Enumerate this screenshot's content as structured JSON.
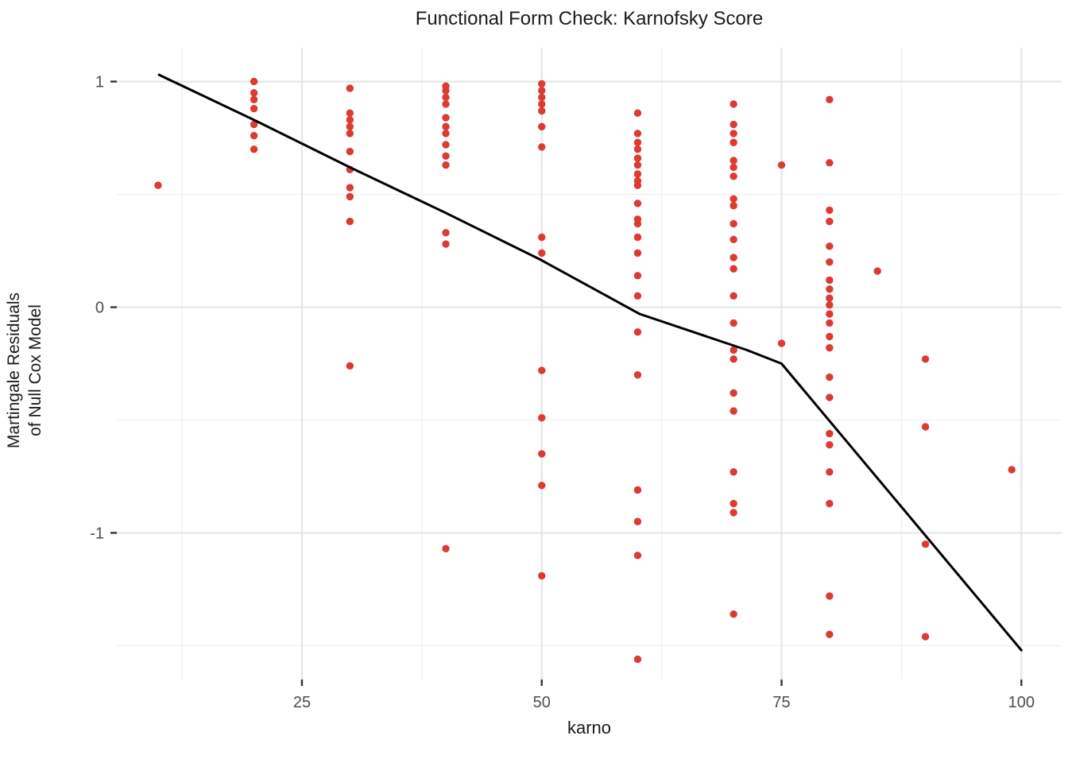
{
  "title": "Functional Form Check: Karnofsky Score",
  "chart_data": {
    "type": "scatter",
    "title": "Functional Form Check: Karnofsky Score",
    "xlabel": "karno",
    "ylabel_lines": [
      "Martingale Residuals",
      "of Null Cox Model"
    ],
    "x_ticks": [
      25,
      50,
      75,
      100
    ],
    "y_ticks": [
      1,
      0,
      -1
    ],
    "x_minor": [
      12.5,
      37.5,
      62.5,
      87.5
    ],
    "y_minor": [
      0.5,
      -0.5,
      -1.5
    ],
    "xlim": [
      5.7,
      104.2
    ],
    "ylim": [
      -1.65,
      1.15
    ],
    "grid": true,
    "legend": "none",
    "colors": {
      "point": "#DC3A32",
      "smooth_line": "#000000",
      "grid_major": "#E6E6E6",
      "grid_minor": "#EFEFEF",
      "tick_mark": "#333333",
      "tick_label": "#4D4D4D",
      "text": "#1A1A1A",
      "panel_bg": "#FFFFFF"
    },
    "groups": [
      {
        "karno": 10,
        "residuals": [
          0.54
        ]
      },
      {
        "karno": 20,
        "residuals": [
          1.0,
          0.95,
          0.92,
          0.88,
          0.81,
          0.76,
          0.7
        ]
      },
      {
        "karno": 30,
        "residuals": [
          0.97,
          0.86,
          0.83,
          0.8,
          0.77,
          0.69,
          0.61,
          0.53,
          0.49,
          0.38,
          -0.26
        ]
      },
      {
        "karno": 40,
        "residuals": [
          0.98,
          0.96,
          0.93,
          0.9,
          0.84,
          0.8,
          0.77,
          0.72,
          0.67,
          0.63,
          0.33,
          0.28,
          -1.07
        ]
      },
      {
        "karno": 50,
        "residuals": [
          0.99,
          0.96,
          0.93,
          0.9,
          0.87,
          0.8,
          0.71,
          0.31,
          0.24,
          -0.28,
          -0.49,
          -0.65,
          -0.79,
          -1.19
        ]
      },
      {
        "karno": 60,
        "residuals": [
          0.86,
          0.77,
          0.73,
          0.7,
          0.66,
          0.63,
          0.59,
          0.56,
          0.54,
          0.46,
          0.39,
          0.37,
          0.31,
          0.24,
          0.14,
          0.05,
          -0.11,
          -0.3,
          -0.81,
          -0.95,
          -1.1,
          -1.56
        ]
      },
      {
        "karno": 70,
        "residuals": [
          0.9,
          0.81,
          0.77,
          0.73,
          0.65,
          0.62,
          0.58,
          0.48,
          0.45,
          0.37,
          0.3,
          0.22,
          0.17,
          0.05,
          -0.07,
          -0.19,
          -0.23,
          -0.38,
          -0.46,
          -0.73,
          -0.87,
          -0.91,
          -1.36
        ]
      },
      {
        "karno": 75,
        "residuals": [
          0.63,
          -0.16
        ]
      },
      {
        "karno": 80,
        "residuals": [
          0.92,
          0.64,
          0.43,
          0.38,
          0.27,
          0.2,
          0.12,
          0.08,
          0.04,
          0.01,
          -0.03,
          -0.07,
          -0.13,
          -0.18,
          -0.31,
          -0.4,
          -0.56,
          -0.61,
          -0.73,
          -0.87,
          -1.28,
          -1.45
        ]
      },
      {
        "karno": 85,
        "residuals": [
          0.16
        ]
      },
      {
        "karno": 90,
        "residuals": [
          -0.23,
          -0.53,
          -1.05,
          -1.46
        ]
      },
      {
        "karno": 99,
        "residuals": [
          -0.72
        ]
      }
    ],
    "smooth_line": [
      {
        "x": 10.1,
        "y": 1.03
      },
      {
        "x": 20.0,
        "y": 0.83
      },
      {
        "x": 30.0,
        "y": 0.62
      },
      {
        "x": 39.9,
        "y": 0.42
      },
      {
        "x": 49.9,
        "y": 0.21
      },
      {
        "x": 60.2,
        "y": -0.03
      },
      {
        "x": 71.4,
        "y": -0.19
      },
      {
        "x": 75.0,
        "y": -0.25
      },
      {
        "x": 88.0,
        "y": -0.91
      },
      {
        "x": 100.0,
        "y": -1.52
      }
    ]
  }
}
